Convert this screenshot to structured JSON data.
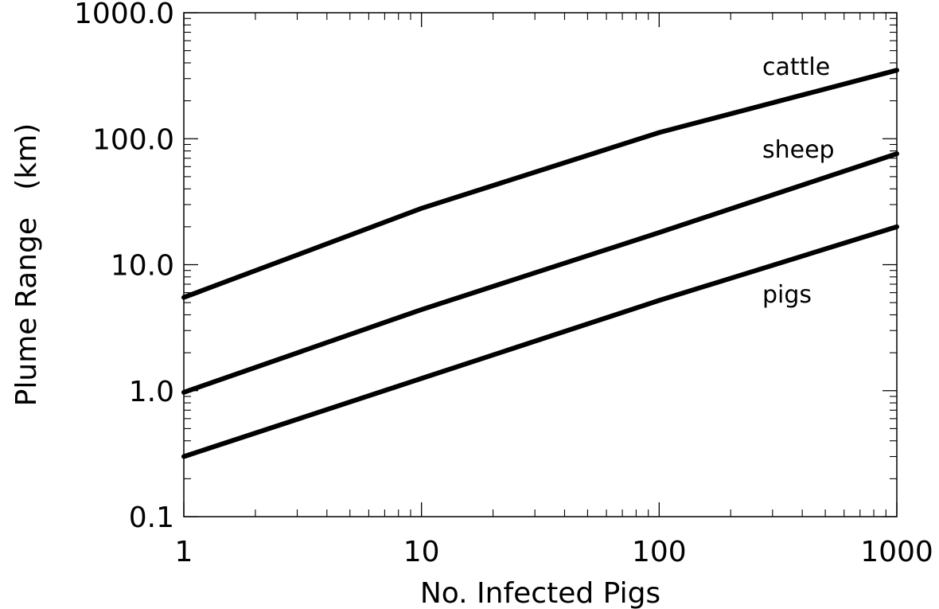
{
  "chart_data": {
    "type": "line",
    "title": "",
    "xlabel": "No. Infected Pigs",
    "ylabel": "Plume Range   (km)",
    "x_scale": "log",
    "y_scale": "log",
    "xlim": [
      1,
      1000
    ],
    "ylim": [
      0.1,
      1000
    ],
    "x_ticks": [
      1,
      10,
      100,
      1000
    ],
    "x_tick_labels": [
      "1",
      "10",
      "100",
      "1000"
    ],
    "y_ticks": [
      0.1,
      1,
      10,
      100,
      1000
    ],
    "y_tick_labels": [
      "0.1",
      "1.0",
      "10.0",
      "100.0",
      "1000.0"
    ],
    "grid": false,
    "legend": "inline labels at right",
    "line_color": "#000000",
    "x": [
      1,
      10,
      100,
      1000
    ],
    "series": [
      {
        "name": "cattle",
        "values": [
          5.5,
          28,
          112,
          350
        ]
      },
      {
        "name": "sheep",
        "values": [
          0.97,
          4.4,
          18,
          76
        ]
      },
      {
        "name": "pigs",
        "values": [
          0.3,
          1.25,
          5.2,
          20
        ]
      }
    ]
  }
}
